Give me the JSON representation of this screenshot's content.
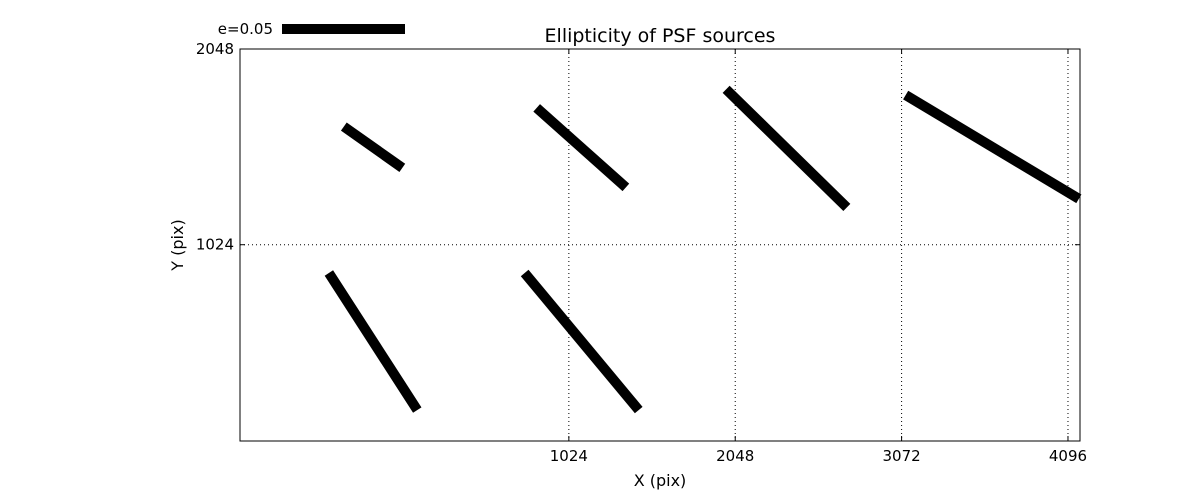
{
  "chart_data": {
    "type": "quiver",
    "title": "Ellipticity of PSF sources",
    "xlabel": "X (pix)",
    "ylabel": "Y (pix)",
    "xlim": [
      -1000,
      4170
    ],
    "ylim": [
      -3,
      2048
    ],
    "xticks": [
      {
        "value": 1024,
        "label": "1024"
      },
      {
        "value": 2048,
        "label": "2048"
      },
      {
        "value": 3072,
        "label": "3072"
      },
      {
        "value": 4096,
        "label": "4096"
      }
    ],
    "yticks": [
      {
        "value": 1024,
        "label": "1024"
      },
      {
        "value": 2048,
        "label": "2048"
      }
    ],
    "grid": true,
    "legend": {
      "label": "e=0.05",
      "position": "top-left",
      "e": 0.05
    },
    "segments": [
      {
        "x0": -361,
        "y0": 1642,
        "x1": -1,
        "y1": 1426
      },
      {
        "x0": 826,
        "y0": 1740,
        "x1": 1375,
        "y1": 1324
      },
      {
        "x0": 1992,
        "y0": 1837,
        "x1": 2735,
        "y1": 1219
      },
      {
        "x0": 3097,
        "y0": 1807,
        "x1": 4163,
        "y1": 1264
      },
      {
        "x0": -453,
        "y0": 876,
        "x1": 91,
        "y1": 159
      },
      {
        "x0": 752,
        "y0": 876,
        "x1": 1454,
        "y1": 159
      }
    ]
  }
}
